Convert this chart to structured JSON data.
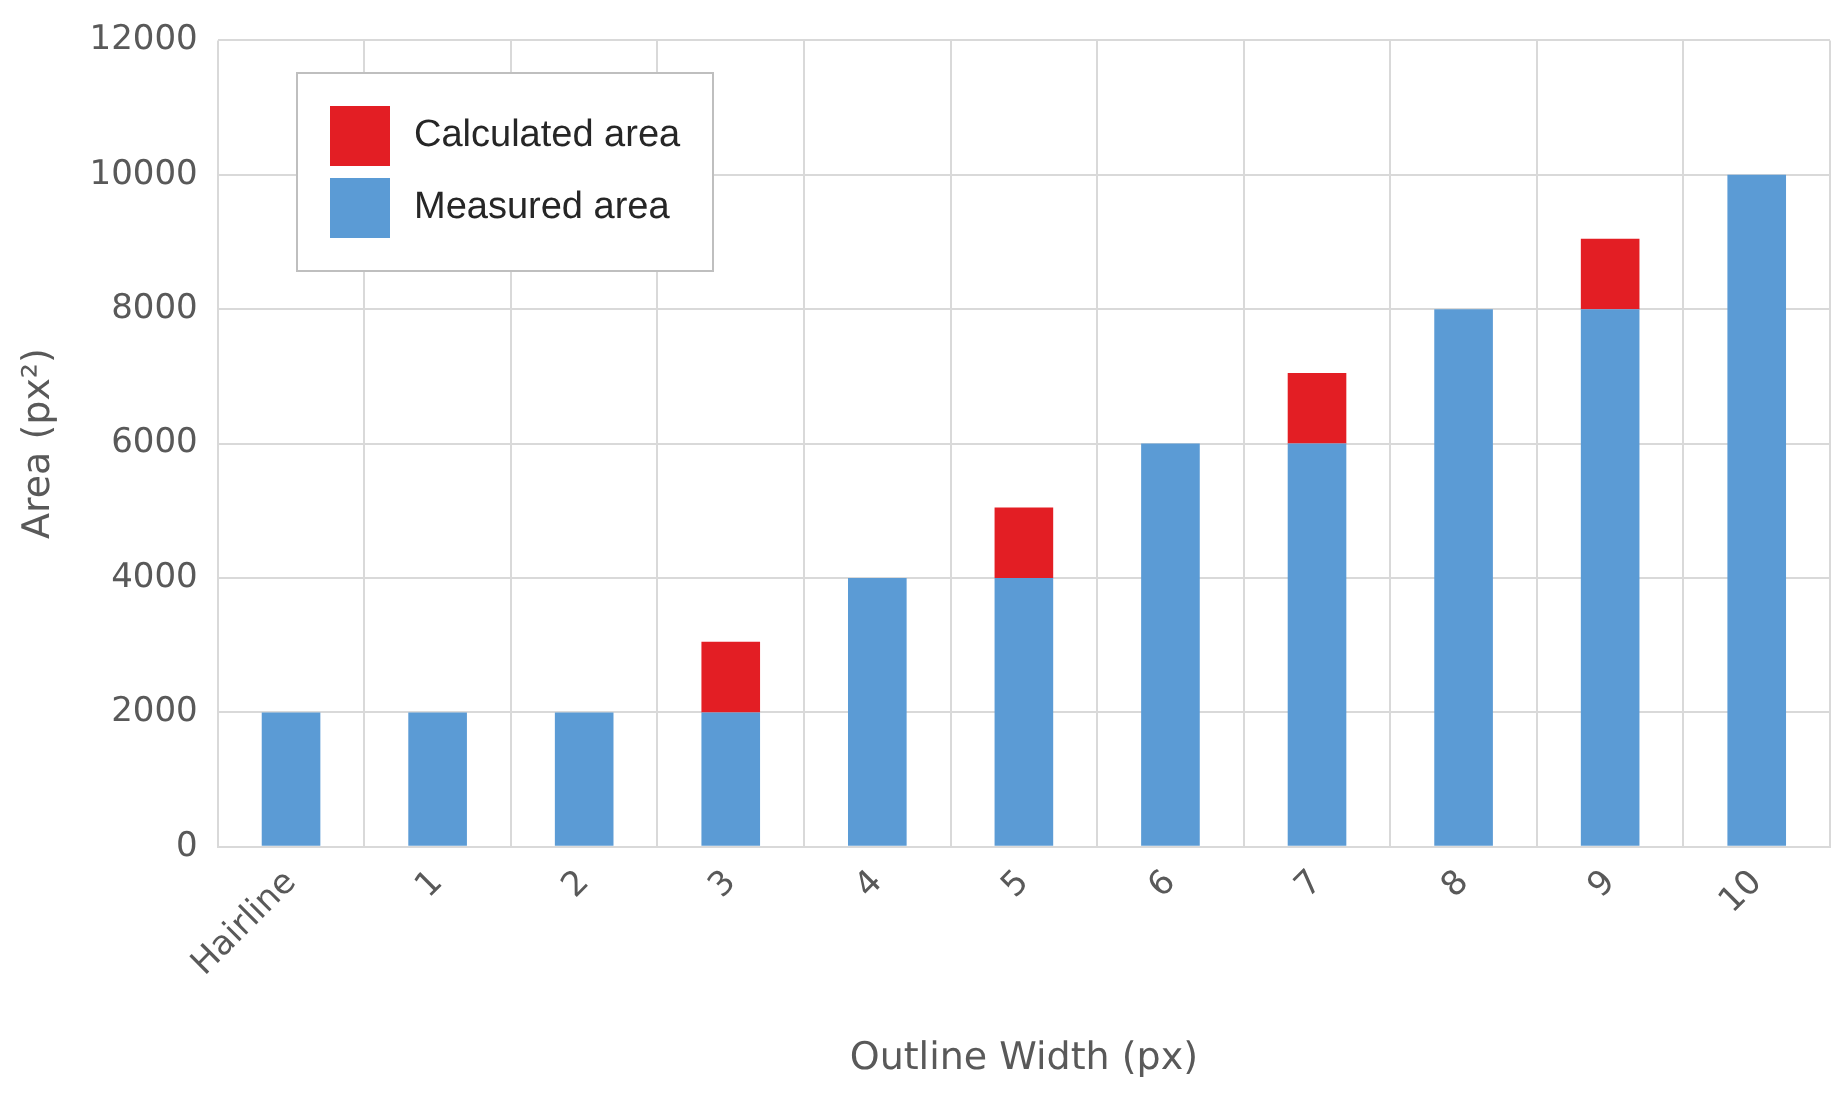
{
  "chart_data": {
    "type": "bar",
    "stacked": true,
    "xlabel": "Outline Width (px)",
    "ylabel": "Area (px²)",
    "categories": [
      "Hairline",
      "1",
      "2",
      "3",
      "4",
      "5",
      "6",
      "7",
      "8",
      "9",
      "10"
    ],
    "series": [
      {
        "name": "Measured area",
        "color": "#5b9bd5",
        "values": [
          2000,
          2000,
          2000,
          2000,
          4000,
          4000,
          6000,
          6000,
          8000,
          8000,
          10000
        ]
      },
      {
        "name": "Calculated area",
        "color": "#e31e24",
        "values": [
          0,
          0,
          0,
          1050,
          0,
          1050,
          0,
          1050,
          0,
          1050,
          0
        ]
      }
    ],
    "ylim": [
      0,
      12000
    ],
    "yticks": [
      0,
      2000,
      4000,
      6000,
      8000,
      10000,
      12000
    ],
    "grid": true,
    "legend": "top left"
  }
}
